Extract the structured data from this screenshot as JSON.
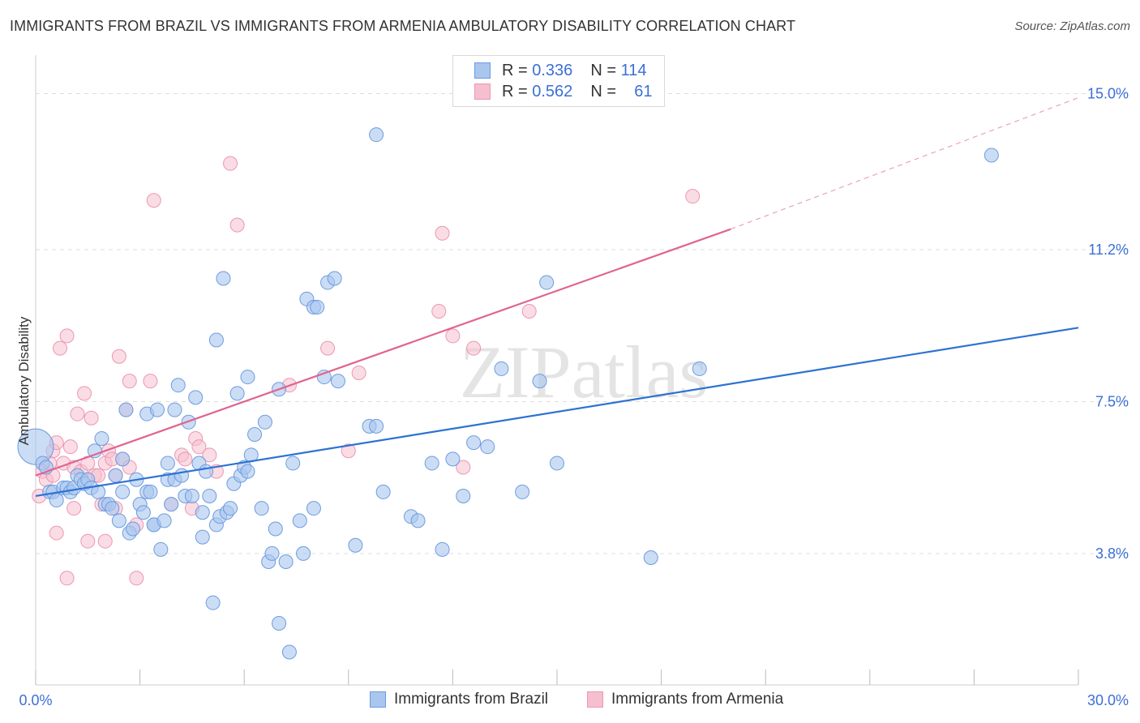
{
  "title": "IMMIGRANTS FROM BRAZIL VS IMMIGRANTS FROM ARMENIA AMBULATORY DISABILITY CORRELATION CHART",
  "source": "Source: ZipAtlas.com",
  "watermark": "ZIPatlas",
  "colors": {
    "brazil_fill": "#a9c6ee",
    "brazil_stroke": "#6d9ce0",
    "brazil_line": "#2d72d2",
    "armenia_fill": "#f6bfd0",
    "armenia_stroke": "#ec97b3",
    "armenia_line": "#e0648f",
    "tick_label": "#3b6fd6",
    "grid": "#dedede"
  },
  "legend_top": {
    "rows": [
      {
        "r_label": "R =",
        "r_value": "0.336",
        "n_label": "N =",
        "n_value": "114"
      },
      {
        "r_label": "R =",
        "r_value": "0.562",
        "n_label": "N =",
        "n_value": "61"
      }
    ]
  },
  "legend_bottom": {
    "items": [
      "Immigrants from Brazil",
      "Immigrants from Armenia"
    ]
  },
  "chart_data": {
    "type": "scatter",
    "title": "IMMIGRANTS FROM BRAZIL VS IMMIGRANTS FROM ARMENIA AMBULATORY DISABILITY CORRELATION CHART",
    "xlabel": "",
    "ylabel": "Ambulatory Disability",
    "xlim": [
      0,
      30
    ],
    "ylim": [
      0.6,
      15.8
    ],
    "x_tick_labels": [
      "0.0%",
      "30.0%"
    ],
    "y_ticks": [
      3.8,
      7.5,
      11.2,
      15.0
    ],
    "y_tick_labels": [
      "3.8%",
      "7.5%",
      "11.2%",
      "15.0%"
    ],
    "grid": true,
    "legend_position": "top-center",
    "series": [
      {
        "name": "Immigrants from Brazil",
        "points": [
          [
            0.0,
            6.4
          ],
          [
            0.2,
            6.0
          ],
          [
            0.3,
            5.9
          ],
          [
            0.4,
            5.3
          ],
          [
            0.5,
            5.3
          ],
          [
            0.6,
            5.1
          ],
          [
            0.8,
            5.4
          ],
          [
            0.9,
            5.4
          ],
          [
            1.0,
            5.3
          ],
          [
            1.1,
            5.4
          ],
          [
            1.2,
            5.7
          ],
          [
            1.3,
            5.6
          ],
          [
            1.4,
            5.5
          ],
          [
            1.5,
            5.6
          ],
          [
            1.6,
            5.4
          ],
          [
            1.7,
            6.3
          ],
          [
            1.8,
            5.3
          ],
          [
            1.9,
            6.6
          ],
          [
            2.0,
            5.0
          ],
          [
            2.1,
            5.0
          ],
          [
            2.2,
            4.9
          ],
          [
            2.3,
            5.7
          ],
          [
            2.4,
            4.6
          ],
          [
            2.5,
            6.1
          ],
          [
            2.5,
            5.3
          ],
          [
            2.6,
            7.3
          ],
          [
            2.7,
            4.3
          ],
          [
            2.8,
            4.4
          ],
          [
            2.9,
            5.6
          ],
          [
            3.0,
            5.0
          ],
          [
            3.1,
            4.8
          ],
          [
            3.2,
            7.2
          ],
          [
            3.2,
            5.3
          ],
          [
            3.3,
            5.3
          ],
          [
            3.4,
            4.5
          ],
          [
            3.4,
            4.5
          ],
          [
            3.5,
            7.3
          ],
          [
            3.6,
            3.9
          ],
          [
            3.7,
            4.6
          ],
          [
            3.8,
            6.0
          ],
          [
            3.8,
            5.6
          ],
          [
            3.9,
            5.0
          ],
          [
            4.0,
            5.6
          ],
          [
            4.0,
            7.3
          ],
          [
            4.1,
            7.9
          ],
          [
            4.2,
            5.7
          ],
          [
            4.3,
            5.2
          ],
          [
            4.4,
            7.0
          ],
          [
            4.5,
            5.2
          ],
          [
            4.6,
            7.6
          ],
          [
            4.7,
            6.0
          ],
          [
            4.8,
            4.8
          ],
          [
            4.8,
            4.2
          ],
          [
            4.9,
            5.8
          ],
          [
            5.0,
            5.2
          ],
          [
            5.1,
            2.6
          ],
          [
            5.2,
            4.5
          ],
          [
            5.2,
            9.0
          ],
          [
            5.3,
            4.7
          ],
          [
            5.4,
            10.5
          ],
          [
            5.5,
            4.8
          ],
          [
            5.6,
            4.9
          ],
          [
            5.7,
            5.5
          ],
          [
            5.8,
            7.7
          ],
          [
            5.9,
            5.7
          ],
          [
            6.0,
            5.9
          ],
          [
            6.1,
            8.1
          ],
          [
            6.1,
            5.8
          ],
          [
            6.2,
            6.2
          ],
          [
            6.3,
            6.7
          ],
          [
            6.5,
            4.9
          ],
          [
            6.6,
            7.0
          ],
          [
            6.7,
            3.6
          ],
          [
            6.8,
            3.8
          ],
          [
            6.9,
            4.4
          ],
          [
            7.0,
            7.8
          ],
          [
            7.0,
            2.1
          ],
          [
            7.2,
            3.6
          ],
          [
            7.3,
            1.4
          ],
          [
            7.4,
            6.0
          ],
          [
            7.6,
            4.6
          ],
          [
            7.7,
            3.8
          ],
          [
            7.8,
            10.0
          ],
          [
            8.0,
            9.8
          ],
          [
            8.0,
            4.9
          ],
          [
            8.1,
            9.8
          ],
          [
            8.3,
            8.1
          ],
          [
            8.4,
            10.4
          ],
          [
            8.6,
            10.5
          ],
          [
            8.7,
            8.0
          ],
          [
            9.2,
            4.0
          ],
          [
            9.6,
            6.9
          ],
          [
            9.8,
            14.0
          ],
          [
            9.8,
            6.9
          ],
          [
            10.0,
            5.3
          ],
          [
            10.8,
            4.7
          ],
          [
            11.0,
            4.6
          ],
          [
            11.4,
            6.0
          ],
          [
            11.7,
            3.9
          ],
          [
            12.0,
            6.1
          ],
          [
            12.3,
            5.2
          ],
          [
            12.6,
            6.5
          ],
          [
            13.0,
            6.4
          ],
          [
            13.4,
            8.3
          ],
          [
            14.0,
            5.3
          ],
          [
            14.5,
            8.0
          ],
          [
            14.7,
            10.4
          ],
          [
            15.0,
            6.0
          ],
          [
            17.7,
            3.7
          ],
          [
            19.1,
            8.3
          ],
          [
            27.5,
            13.5
          ]
        ],
        "trend": {
          "x0": 0.0,
          "y0": 5.2,
          "x1": 30.0,
          "y1": 9.3
        }
      },
      {
        "name": "Immigrants from Armenia",
        "points": [
          [
            0.1,
            5.2
          ],
          [
            0.2,
            5.8
          ],
          [
            0.3,
            5.6
          ],
          [
            0.4,
            6.0
          ],
          [
            0.5,
            6.3
          ],
          [
            0.5,
            5.7
          ],
          [
            0.6,
            4.3
          ],
          [
            0.6,
            6.5
          ],
          [
            0.7,
            8.8
          ],
          [
            0.8,
            6.0
          ],
          [
            0.9,
            9.1
          ],
          [
            0.9,
            3.2
          ],
          [
            1.0,
            6.4
          ],
          [
            1.1,
            5.9
          ],
          [
            1.1,
            4.9
          ],
          [
            1.2,
            7.2
          ],
          [
            1.3,
            5.8
          ],
          [
            1.4,
            7.7
          ],
          [
            1.5,
            6.0
          ],
          [
            1.5,
            4.1
          ],
          [
            1.6,
            7.1
          ],
          [
            1.7,
            5.7
          ],
          [
            1.8,
            5.7
          ],
          [
            1.9,
            5.0
          ],
          [
            2.0,
            6.0
          ],
          [
            2.0,
            4.1
          ],
          [
            2.1,
            6.3
          ],
          [
            2.2,
            6.1
          ],
          [
            2.3,
            4.9
          ],
          [
            2.3,
            5.7
          ],
          [
            2.4,
            8.6
          ],
          [
            2.5,
            6.1
          ],
          [
            2.6,
            7.3
          ],
          [
            2.7,
            5.9
          ],
          [
            2.7,
            8.0
          ],
          [
            2.9,
            4.5
          ],
          [
            2.9,
            3.2
          ],
          [
            3.3,
            8.0
          ],
          [
            3.4,
            12.4
          ],
          [
            3.9,
            5.0
          ],
          [
            4.2,
            6.2
          ],
          [
            4.3,
            6.1
          ],
          [
            4.5,
            4.9
          ],
          [
            4.6,
            6.6
          ],
          [
            4.7,
            6.4
          ],
          [
            5.0,
            6.2
          ],
          [
            5.2,
            5.8
          ],
          [
            5.6,
            13.3
          ],
          [
            5.8,
            11.8
          ],
          [
            7.3,
            7.9
          ],
          [
            8.4,
            8.8
          ],
          [
            9.0,
            6.3
          ],
          [
            9.3,
            8.2
          ],
          [
            11.6,
            9.7
          ],
          [
            11.7,
            11.6
          ],
          [
            12.0,
            9.1
          ],
          [
            12.3,
            5.9
          ],
          [
            12.6,
            8.8
          ],
          [
            14.2,
            9.7
          ],
          [
            18.9,
            12.5
          ]
        ],
        "trend": {
          "x0": 0.0,
          "y0": 5.7,
          "x1": 20.0,
          "y1": 11.7
        },
        "trend_dashed": {
          "x0": 20.0,
          "y0": 11.7,
          "x1": 30.0,
          "y1": 14.9
        }
      }
    ]
  }
}
